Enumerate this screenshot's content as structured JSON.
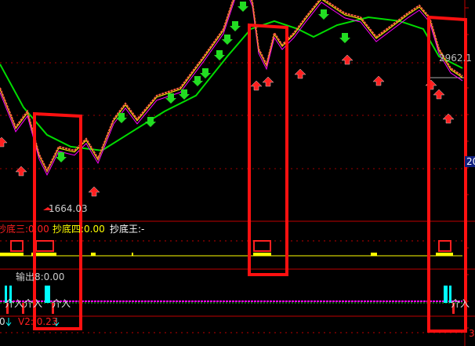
{
  "chart_data": {
    "type": "line",
    "title": "",
    "main_panel": {
      "price_series": [
        2695,
        2352,
        2489,
        2112,
        1974,
        2180,
        2146,
        2249,
        2077,
        2421,
        2558,
        2421,
        2627,
        2696,
        2970,
        3210,
        3519,
        3622,
        3450,
        3038,
        2901,
        3176,
        3072,
        3176,
        3313,
        3485,
        3416,
        3348,
        3313,
        3141,
        3244,
        3348,
        3416,
        3313,
        3038,
        2867,
        2798
      ],
      "ma_series": [
        2902,
        2524,
        2283,
        2180,
        2146,
        2318,
        2489,
        2627,
        2970,
        3210,
        3279,
        3210,
        3141,
        3244,
        3313,
        3279,
        3210,
        2970,
        2867
      ],
      "low_label": "1664.03",
      "level_label": "2962.1",
      "axis_badge": "20",
      "colors": {
        "price": "#ff6040",
        "ma_short": "#ffff00",
        "ma_mid": "#ff00ff",
        "ma_long": "#00dd00",
        "buy_arrow": "#ff2020",
        "sell_arrow": "#22dd22"
      }
    },
    "indicator1": {
      "labels": [
        {
          "text": "抄底三:0.00",
          "color": "#ff2020"
        },
        {
          "text": "抄底四:0.00",
          "color": "#ffff00"
        },
        {
          "text": "抄底王:-",
          "color": "#ffffff"
        }
      ]
    },
    "indicator2": {
      "label": "输出8:0.00",
      "signal_text": "介入",
      "signal_texts": [
        "介入",
        "介入",
        "介入",
        "介入"
      ]
    },
    "indicator3": {
      "left_value": "0",
      "v2_label": "V2: 0.23"
    },
    "right_axis_bottom": "3"
  }
}
